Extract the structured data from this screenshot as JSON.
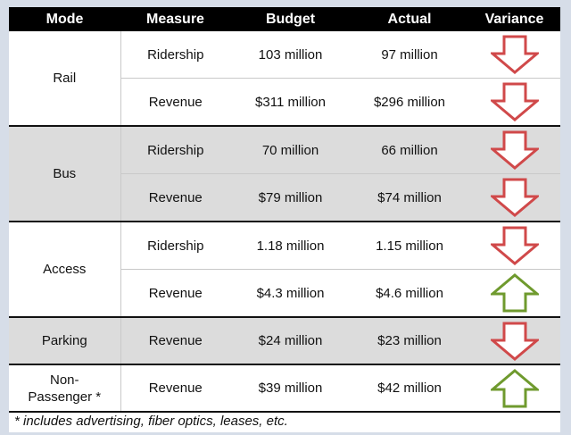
{
  "table": {
    "headers": [
      "Mode",
      "Measure",
      "Budget",
      "Actual",
      "Variance"
    ],
    "groups": [
      {
        "mode": "Rail",
        "rows": [
          {
            "measure": "Ridership",
            "budget": "103 million",
            "actual": "97 million",
            "variance": "down"
          },
          {
            "measure": "Revenue",
            "budget": "$311 million",
            "actual": "$296 million",
            "variance": "down"
          }
        ]
      },
      {
        "mode": "Bus",
        "rows": [
          {
            "measure": "Ridership",
            "budget": "70 million",
            "actual": "66 million",
            "variance": "down"
          },
          {
            "measure": "Revenue",
            "budget": "$79 million",
            "actual": "$74 million",
            "variance": "down"
          }
        ]
      },
      {
        "mode": "Access",
        "rows": [
          {
            "measure": "Ridership",
            "budget": "1.18 million",
            "actual": "1.15 million",
            "variance": "down"
          },
          {
            "measure": "Revenue",
            "budget": "$4.3 million",
            "actual": "$4.6 million",
            "variance": "up"
          }
        ]
      },
      {
        "mode": "Parking",
        "rows": [
          {
            "measure": "Revenue",
            "budget": "$24 million",
            "actual": "$23 million",
            "variance": "down"
          }
        ]
      },
      {
        "mode": "Non-\nPassenger *",
        "mode_line1": "Non-",
        "mode_line2": "Passenger *",
        "rows": [
          {
            "measure": "Revenue",
            "budget": "$39 million",
            "actual": "$42 million",
            "variance": "up"
          }
        ]
      }
    ]
  },
  "footnote": "* includes advertising, fiber optics, leases, etc.",
  "colors": {
    "down_arrow": "#d0494a",
    "up_arrow": "#6f9a2e",
    "header_bg": "#000000",
    "gray_row": "#dcdcdc"
  }
}
